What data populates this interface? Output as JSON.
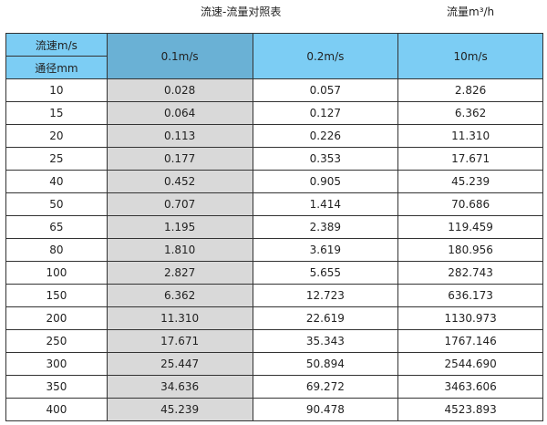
{
  "title": "流速-流量对照表",
  "unit": "流量m³/h",
  "header": {
    "speed_label": "流速m/s",
    "diameter_label": "通径mm",
    "columns": [
      "0.1m/s",
      "0.2m/s",
      "10m/s"
    ]
  },
  "colors": {
    "header": "#7ccdf4",
    "header_highlight": "#6ab1d5",
    "highlight_column": "#d9d9d9"
  },
  "rows": [
    [
      "10",
      "0.028",
      "0.057",
      "2.826"
    ],
    [
      "15",
      "0.064",
      "0.127",
      "6.362"
    ],
    [
      "20",
      "0.113",
      "0.226",
      "11.310"
    ],
    [
      "25",
      "0.177",
      "0.353",
      "17.671"
    ],
    [
      "40",
      "0.452",
      "0.905",
      "45.239"
    ],
    [
      "50",
      "0.707",
      "1.414",
      "70.686"
    ],
    [
      "65",
      "1.195",
      "2.389",
      "119.459"
    ],
    [
      "80",
      "1.810",
      "3.619",
      "180.956"
    ],
    [
      "100",
      "2.827",
      "5.655",
      "282.743"
    ],
    [
      "150",
      "6.362",
      "12.723",
      "636.173"
    ],
    [
      "200",
      "11.310",
      "22.619",
      "1130.973"
    ],
    [
      "250",
      "17.671",
      "35.343",
      "1767.146"
    ],
    [
      "300",
      "25.447",
      "50.894",
      "2544.690"
    ],
    [
      "350",
      "34.636",
      "69.272",
      "3463.606"
    ],
    [
      "400",
      "45.239",
      "90.478",
      "4523.893"
    ]
  ]
}
